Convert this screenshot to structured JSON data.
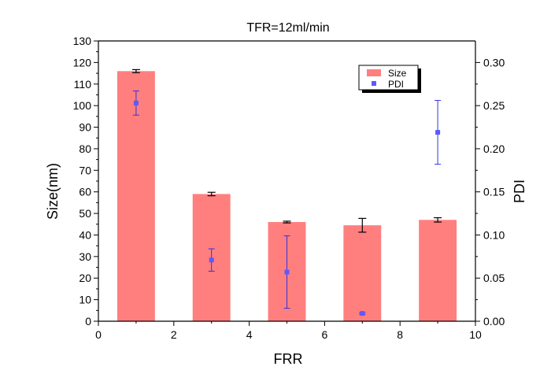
{
  "chart_data": {
    "type": "bar",
    "title": "TFR=12ml/min",
    "xlabel": "FRR",
    "ylabel": "Size(nm)",
    "y2label": "PDI",
    "xlim": [
      0,
      10
    ],
    "ylim": [
      0,
      130
    ],
    "y2lim": [
      0,
      0.325
    ],
    "x_ticks": [
      0,
      2,
      4,
      6,
      8,
      10
    ],
    "y_ticks": [
      0,
      10,
      20,
      30,
      40,
      50,
      60,
      70,
      80,
      90,
      100,
      110,
      120,
      130
    ],
    "y2_ticks": [
      0.0,
      0.05,
      0.1,
      0.15,
      0.2,
      0.25,
      0.3
    ],
    "y2_tick_labels": [
      "0.00",
      "0.05",
      "0.10",
      "0.15",
      "0.20",
      "0.25",
      "0.30"
    ],
    "grid": false,
    "legend_position": "top-right",
    "colors": {
      "size": "#ff7f7f",
      "pdi": "#5a5aff",
      "error_size": "#000000",
      "error_pdi": "#3333dd"
    },
    "series": [
      {
        "name": "Size",
        "kind": "bar",
        "axis": "left",
        "x": [
          1,
          3,
          5,
          7,
          9
        ],
        "values": [
          116,
          59,
          46,
          44.5,
          47
        ],
        "errors": [
          0.7,
          0.8,
          0.4,
          3.2,
          1.0
        ]
      },
      {
        "name": "PDI",
        "kind": "scatter",
        "axis": "right",
        "x": [
          1,
          3,
          5,
          7,
          9
        ],
        "values": [
          0.253,
          0.071,
          0.057,
          0.009,
          0.219
        ],
        "errors": [
          0.014,
          0.013,
          0.042,
          0.001,
          0.037
        ]
      }
    ]
  }
}
